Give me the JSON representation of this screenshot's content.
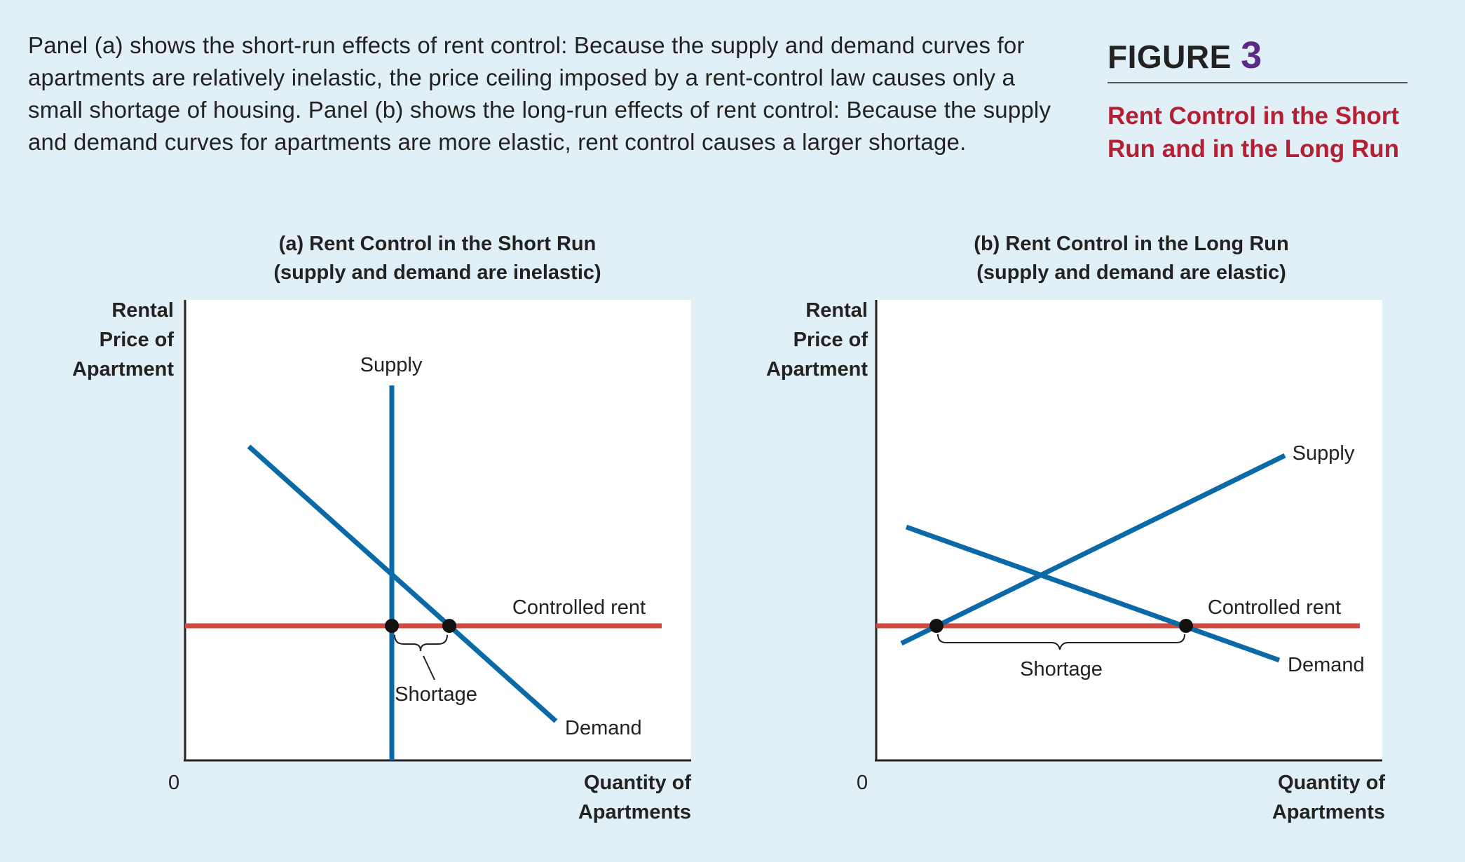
{
  "caption": "Panel (a) shows the short-run effects of rent control: Because the supply and demand curves for apartments are relatively inelastic, the price ceiling imposed by a rent-control law causes only a small shortage of housing. Panel (b) shows the long-run effects of rent control: Because the supply and demand curves for apartments are more elastic, rent control causes a larger shortage.",
  "figure": {
    "label": "FIGURE",
    "number": "3",
    "title": "Rent Control in the Short Run and in the Long Run"
  },
  "colors": {
    "supply_demand": "#0a6aa7",
    "controlled_rent": "#cf4b3f",
    "figure_number": "#5b2a86",
    "figure_title": "#b32034",
    "background": "#e1eff6"
  },
  "panels": {
    "a": {
      "title_line1": "(a) Rent Control in the Short Run",
      "title_line2": "(supply and demand are inelastic)",
      "y_label_1": "Rental",
      "y_label_2": "Price of",
      "y_label_3": "Apartment",
      "x_label_1": "Quantity of",
      "x_label_2": "Apartments",
      "origin": "0",
      "supply_label": "Supply",
      "demand_label": "Demand",
      "controlled_rent_label": "Controlled rent",
      "shortage_label": "Shortage"
    },
    "b": {
      "title_line1": "(b) Rent Control in the Long Run",
      "title_line2": "(supply and demand are elastic)",
      "y_label_1": "Rental",
      "y_label_2": "Price of",
      "y_label_3": "Apartment",
      "x_label_1": "Quantity of",
      "x_label_2": "Apartments",
      "origin": "0",
      "supply_label": "Supply",
      "demand_label": "Demand",
      "controlled_rent_label": "Controlled rent",
      "shortage_label": "Shortage"
    }
  }
}
